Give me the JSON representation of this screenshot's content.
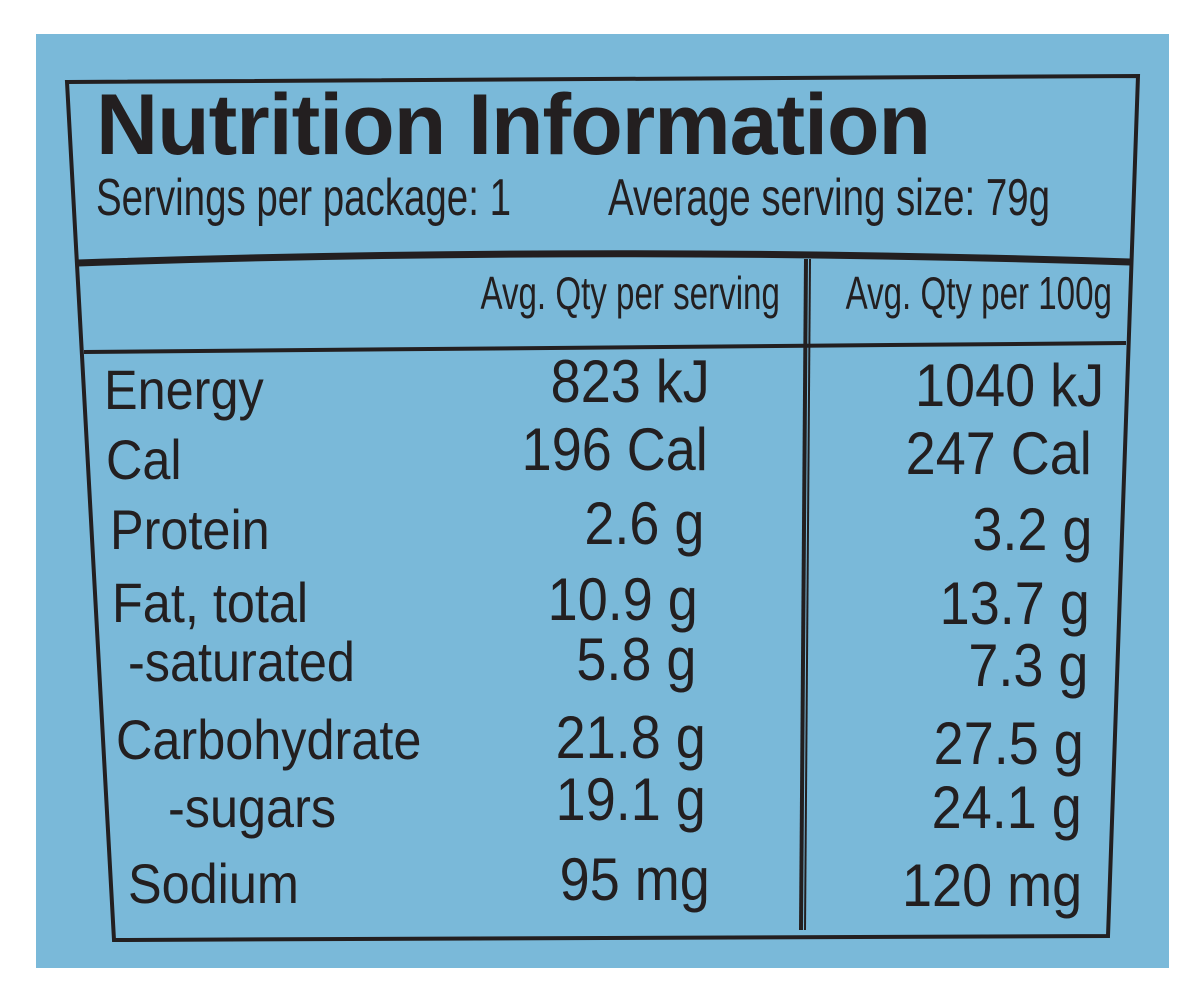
{
  "title": "Nutrition Information",
  "servings_per_package": "Servings per package: 1",
  "average_serving_size": "Average serving size: 79g",
  "columns": {
    "per_serving": "Avg. Qty per serving",
    "per_100g": "Avg. Qty per 100g"
  },
  "rows": [
    {
      "label": "Energy",
      "per_serving": "823 kJ",
      "per_100g": "1040 kJ"
    },
    {
      "label": "Cal",
      "per_serving": "196 Cal",
      "per_100g": "247 Cal"
    },
    {
      "label": "Protein",
      "per_serving": "2.6 g",
      "per_100g": "3.2 g"
    },
    {
      "label": "Fat, total",
      "per_serving": "10.9 g",
      "per_100g": "13.7 g"
    },
    {
      "label": "-saturated",
      "per_serving": "5.8 g",
      "per_100g": "7.3 g"
    },
    {
      "label": "Carbohydrate",
      "per_serving": "21.8 g",
      "per_100g": "27.5 g"
    },
    {
      "label": "-sugars",
      "per_serving": "19.1 g",
      "per_100g": "24.1 g"
    },
    {
      "label": "Sodium",
      "per_serving": "95 mg",
      "per_100g": "120 mg"
    }
  ],
  "colors": {
    "background": "#7ab9d9",
    "ink": "#231f20",
    "page": "#ffffff"
  }
}
